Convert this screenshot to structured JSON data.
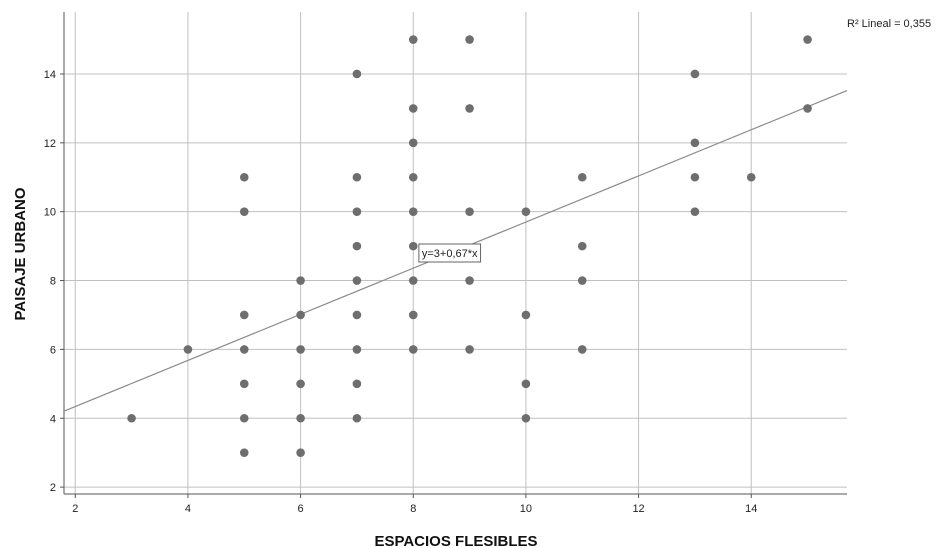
{
  "chart_data": {
    "type": "scatter",
    "title": "",
    "xlabel": "ESPACIOS FLESIBLES",
    "ylabel": "PAISAJE URBANO",
    "xlim": [
      1.8,
      15.7
    ],
    "ylim": [
      1.8,
      15.8
    ],
    "x_ticks": [
      2,
      4,
      6,
      8,
      10,
      12,
      14
    ],
    "y_ticks": [
      2,
      4,
      6,
      8,
      10,
      12,
      14
    ],
    "grid": true,
    "points": [
      {
        "x": 3,
        "y": 4
      },
      {
        "x": 4,
        "y": 6
      },
      {
        "x": 5,
        "y": 3
      },
      {
        "x": 5,
        "y": 4
      },
      {
        "x": 5,
        "y": 5
      },
      {
        "x": 5,
        "y": 6
      },
      {
        "x": 5,
        "y": 7
      },
      {
        "x": 5,
        "y": 10
      },
      {
        "x": 5,
        "y": 11
      },
      {
        "x": 6,
        "y": 3
      },
      {
        "x": 6,
        "y": 4
      },
      {
        "x": 6,
        "y": 5
      },
      {
        "x": 6,
        "y": 6
      },
      {
        "x": 6,
        "y": 7
      },
      {
        "x": 6,
        "y": 8
      },
      {
        "x": 7,
        "y": 4
      },
      {
        "x": 7,
        "y": 5
      },
      {
        "x": 7,
        "y": 6
      },
      {
        "x": 7,
        "y": 7
      },
      {
        "x": 7,
        "y": 8
      },
      {
        "x": 7,
        "y": 9
      },
      {
        "x": 7,
        "y": 10
      },
      {
        "x": 7,
        "y": 11
      },
      {
        "x": 7,
        "y": 14
      },
      {
        "x": 8,
        "y": 6
      },
      {
        "x": 8,
        "y": 7
      },
      {
        "x": 8,
        "y": 8
      },
      {
        "x": 8,
        "y": 9
      },
      {
        "x": 8,
        "y": 10
      },
      {
        "x": 8,
        "y": 11
      },
      {
        "x": 8,
        "y": 12
      },
      {
        "x": 8,
        "y": 13
      },
      {
        "x": 8,
        "y": 15
      },
      {
        "x": 9,
        "y": 6
      },
      {
        "x": 9,
        "y": 8
      },
      {
        "x": 9,
        "y": 10
      },
      {
        "x": 9,
        "y": 13
      },
      {
        "x": 9,
        "y": 15
      },
      {
        "x": 10,
        "y": 4
      },
      {
        "x": 10,
        "y": 5
      },
      {
        "x": 10,
        "y": 7
      },
      {
        "x": 10,
        "y": 10
      },
      {
        "x": 11,
        "y": 6
      },
      {
        "x": 11,
        "y": 8
      },
      {
        "x": 11,
        "y": 9
      },
      {
        "x": 11,
        "y": 11
      },
      {
        "x": 13,
        "y": 10
      },
      {
        "x": 13,
        "y": 11
      },
      {
        "x": 13,
        "y": 12
      },
      {
        "x": 13,
        "y": 14
      },
      {
        "x": 14,
        "y": 11
      },
      {
        "x": 15,
        "y": 13
      },
      {
        "x": 15,
        "y": 15
      }
    ],
    "fit_line": {
      "intercept": 3,
      "slope": 0.67,
      "equation_label": "y=3+0,67*x"
    },
    "r2_label": "R² Lineal = 0,355",
    "colors": {
      "points": "#6e6e6e",
      "fit_line": "#8c8c8c",
      "grid": "#c0c0c0",
      "axis": "#555555"
    }
  }
}
